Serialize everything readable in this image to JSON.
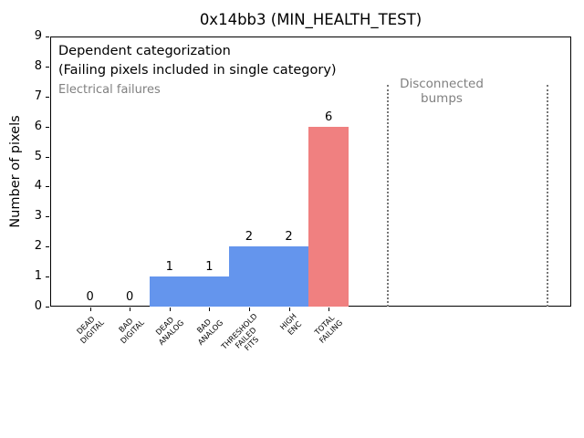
{
  "chart_data": {
    "type": "bar",
    "title": "0x14bb3 (MIN_HEALTH_TEST)",
    "xlabel": "",
    "ylabel": "Number of pixels",
    "ylim": [
      0,
      9
    ],
    "yticks": [
      0,
      1,
      2,
      3,
      4,
      5,
      6,
      7,
      8,
      9
    ],
    "xlim": [
      -1,
      12.1
    ],
    "grid": false,
    "legend": null,
    "categories": [
      [
        "DEAD",
        "DIGITAL"
      ],
      [
        "BAD",
        "DIGITAL"
      ],
      [
        "DEAD",
        "ANALOG"
      ],
      [
        "BAD",
        "ANALOG"
      ],
      [
        "THRESHOLD",
        "FAILED",
        "FITS"
      ],
      [
        "HIGH",
        "ENC"
      ],
      [
        "TOTAL",
        "FAILING"
      ]
    ],
    "values": [
      0,
      0,
      1,
      1,
      2,
      2,
      6
    ],
    "bar_value_labels": [
      "0",
      "0",
      "1",
      "1",
      "2",
      "2",
      "6"
    ],
    "bar_colors": [
      "#6495ED",
      "#6495ED",
      "#6495ED",
      "#6495ED",
      "#6495ED",
      "#6495ED",
      "#F08080"
    ],
    "colors": {
      "bar_blue": "#6495ED",
      "bar_red": "#F08080",
      "annotation_gray": "#808080",
      "dotted_line_gray": "#777777",
      "axis_black": "#000000"
    },
    "vlines": [
      {
        "x": 7.5,
        "y0": 0,
        "y1": 7.4,
        "style": "dotted",
        "color": "#777777"
      },
      {
        "x": 11.5,
        "y0": 0,
        "y1": 7.4,
        "style": "dotted",
        "color": "#777777"
      }
    ],
    "annotations": [
      {
        "id": "dependent-categorization",
        "lines": [
          "Dependent categorization",
          "(Failing pixels included in single category)"
        ],
        "color": "#000000"
      },
      {
        "id": "electrical-failures",
        "lines": [
          "Electrical failures"
        ],
        "color": "#808080"
      },
      {
        "id": "disconnected-bumps",
        "lines": [
          "Disconnected",
          "bumps"
        ],
        "color": "#808080"
      }
    ]
  }
}
